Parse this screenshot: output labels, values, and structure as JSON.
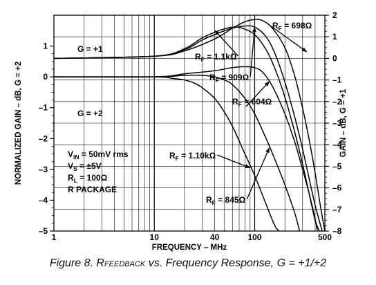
{
  "chart_data": {
    "type": "line",
    "xlabel": "FREQUENCY – MHz",
    "ylabel_left": "NORMALIZED GAIN – dB, G = +2",
    "ylabel_right": "GAIN – dB, G = +1",
    "x_scale": "log",
    "xlim": [
      1,
      500
    ],
    "x_ticks": [
      {
        "value": 1,
        "label": "1"
      },
      {
        "value": 10,
        "label": "10"
      },
      {
        "value": 40,
        "label": "40"
      },
      {
        "value": 100,
        "label": "100"
      },
      {
        "value": 500,
        "label": "500"
      }
    ],
    "ylim_left": [
      -5,
      2
    ],
    "left_ticks": [
      "1",
      "0",
      "–1",
      "–2",
      "–3",
      "–4",
      "–5"
    ],
    "ylim_right": [
      -8,
      2
    ],
    "right_ticks": [
      "2",
      "1",
      "0",
      "–1",
      "–2",
      "–3",
      "–4",
      "–5",
      "–6",
      "–7",
      "–8"
    ],
    "grid": true,
    "groups": [
      {
        "label": "G = +1",
        "axis": "right"
      },
      {
        "label": "G = +2",
        "axis": "left"
      }
    ],
    "series": [
      {
        "name": "RF = 698Ω",
        "group": "G = +1",
        "axis": "right",
        "x": [
          1,
          10,
          20,
          40,
          60,
          80,
          100,
          120,
          150,
          200,
          250,
          300,
          350,
          400,
          450,
          500
        ],
        "y": [
          0,
          0.1,
          0.35,
          0.9,
          1.4,
          1.7,
          1.8,
          1.75,
          1.4,
          0.5,
          -0.8,
          -2.3,
          -3.8,
          -5.3,
          -6.8,
          -8
        ]
      },
      {
        "name": "RF = 1.1kΩ",
        "group": "G = +1",
        "axis": "right",
        "x": [
          1,
          10,
          20,
          30,
          45,
          60,
          75,
          100,
          130,
          160,
          200,
          250,
          300,
          350,
          400,
          440
        ],
        "y": [
          0,
          0.1,
          0.45,
          0.95,
          1.3,
          1.45,
          1.4,
          1.1,
          0.4,
          -0.5,
          -1.8,
          -3.4,
          -4.9,
          -6.3,
          -7.5,
          -8
        ]
      },
      {
        "name": "RF = 909Ω",
        "group": "G = +1",
        "axis": "right",
        "x": [
          1,
          10,
          20,
          30,
          45,
          60,
          80,
          100,
          130,
          160,
          200,
          250,
          300,
          350,
          400,
          470
        ],
        "y": [
          0,
          0.1,
          0.4,
          0.85,
          1.2,
          1.4,
          1.5,
          1.45,
          1.0,
          0.2,
          -1.1,
          -2.7,
          -4.2,
          -5.6,
          -6.8,
          -8
        ]
      },
      {
        "name": "RF = 604Ω",
        "group": "G = +2",
        "axis": "left",
        "x": [
          1,
          10,
          20,
          40,
          60,
          80,
          100,
          120,
          150,
          200,
          250,
          300,
          350,
          400,
          420
        ],
        "y": [
          0,
          0,
          0.1,
          0.2,
          0.3,
          0.33,
          0.3,
          0.15,
          -0.3,
          -1.2,
          -2.1,
          -3.0,
          -3.8,
          -4.6,
          -5
        ]
      },
      {
        "name": "RF = 1.10kΩ",
        "group": "G = +2",
        "axis": "left",
        "x": [
          1,
          10,
          15,
          20,
          25,
          30,
          40,
          50,
          60,
          80,
          100,
          120,
          140,
          160,
          175
        ],
        "y": [
          0,
          0,
          -0.05,
          -0.1,
          -0.2,
          -0.35,
          -0.7,
          -1.15,
          -1.6,
          -2.5,
          -3.2,
          -3.85,
          -4.4,
          -4.85,
          -5
        ]
      },
      {
        "name": "RF = 845Ω",
        "group": "G = +2",
        "axis": "left",
        "x": [
          1,
          10,
          20,
          30,
          40,
          50,
          60,
          80,
          100,
          130,
          160,
          200,
          250,
          280
        ],
        "y": [
          0,
          0,
          0.05,
          0.05,
          0,
          -0.1,
          -0.25,
          -0.7,
          -1.2,
          -2.0,
          -2.7,
          -3.5,
          -4.4,
          -5
        ]
      }
    ],
    "conditions": [
      "VIN = 50mV rms",
      "VS = ±5V",
      "RL = 100Ω",
      "R PACKAGE"
    ]
  },
  "caption": {
    "prefix": "Figure 8. R",
    "subscript": "FEEDBACK",
    "suffix": " vs. Frequency Response, G = +1/+2"
  }
}
